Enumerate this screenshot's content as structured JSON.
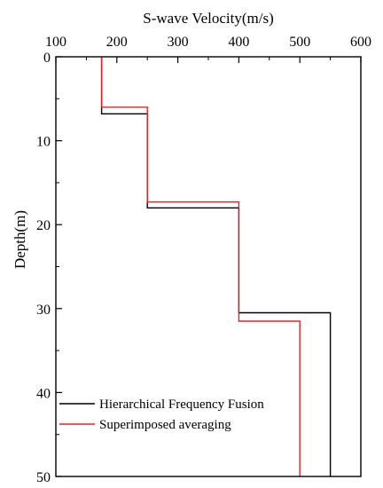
{
  "chart_data": {
    "type": "line",
    "xlabel": "S-wave Velocity(m/s)",
    "ylabel": "Depth(m)",
    "xlim": [
      100,
      600
    ],
    "ylim": [
      0,
      50
    ],
    "x_ticks": [
      "100",
      "200",
      "300",
      "400",
      "500",
      "600"
    ],
    "y_ticks": [
      "0",
      "10",
      "20",
      "30",
      "40",
      "50"
    ],
    "x_axis_position": "top",
    "y_axis_inverted": true,
    "grid": false,
    "legend_position": "bottom-left",
    "series": [
      {
        "name": "Hierarchical Frequency Fusion",
        "color": "#000000",
        "points": [
          [
            175,
            0
          ],
          [
            175,
            6.8
          ],
          [
            250,
            6.8
          ],
          [
            250,
            18
          ],
          [
            400,
            18
          ],
          [
            400,
            30.5
          ],
          [
            550,
            30.5
          ],
          [
            550,
            50
          ]
        ]
      },
      {
        "name": "Superimposed averaging",
        "color": "#e8202a",
        "points": [
          [
            175,
            0
          ],
          [
            175,
            6
          ],
          [
            250,
            6
          ],
          [
            250,
            17.3
          ],
          [
            400,
            17.3
          ],
          [
            400,
            31.5
          ],
          [
            500,
            31.5
          ],
          [
            500,
            50
          ]
        ]
      }
    ]
  }
}
